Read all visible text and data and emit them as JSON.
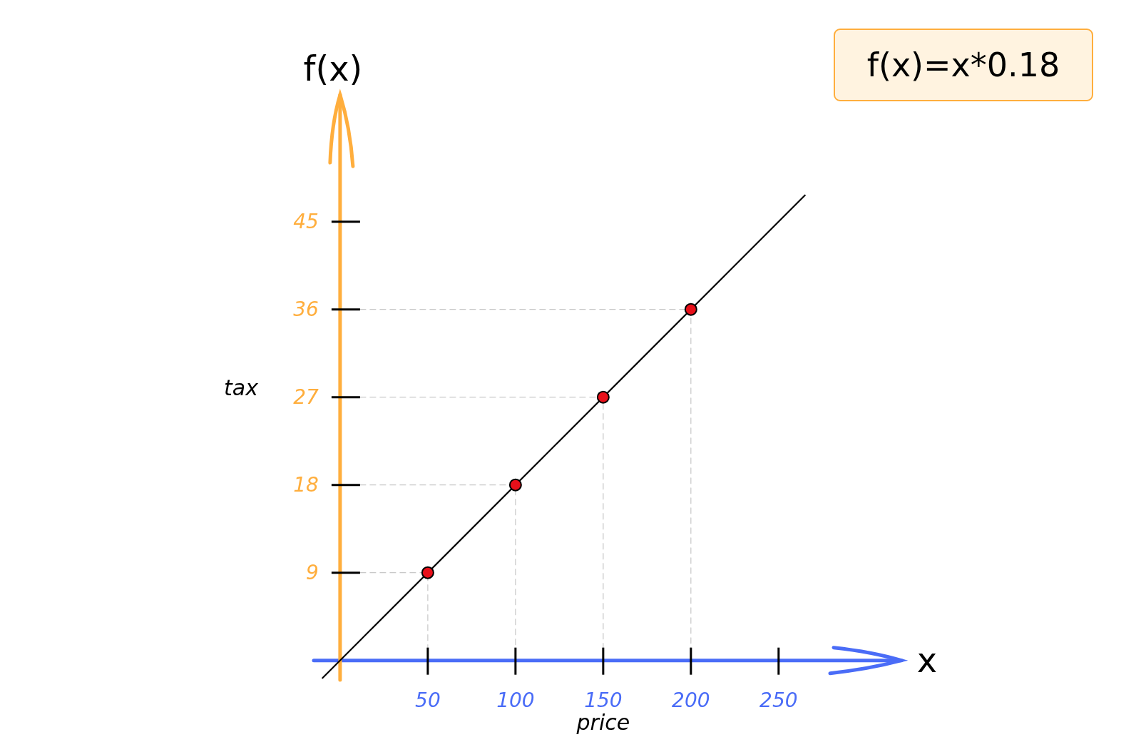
{
  "chart_data": {
    "type": "scatter",
    "title": "f(x)=x*0.18",
    "xlabel": "price",
    "ylabel": "tax",
    "annotations": [
      "f(x)",
      "x"
    ],
    "xlim": [
      -15,
      320
    ],
    "ylim": [
      -2,
      58
    ],
    "xticks": [
      50,
      100,
      150,
      200,
      250
    ],
    "yticks": [
      9,
      18,
      27,
      36,
      45
    ],
    "marker": "circle",
    "series": [
      {
        "type": "line",
        "color": "#c8c8c8",
        "line_style": "dashed",
        "marker": "none",
        "x": [
          0,
          50,
          50
        ],
        "values": [
          9,
          9,
          0
        ]
      },
      {
        "type": "line",
        "color": "#c8c8c8",
        "line_style": "dashed",
        "marker": "none",
        "x": [
          0,
          100,
          100
        ],
        "values": [
          18,
          18,
          0
        ]
      },
      {
        "type": "line",
        "color": "#c8c8c8",
        "line_style": "dashed",
        "marker": "none",
        "x": [
          0,
          150,
          150
        ],
        "values": [
          27,
          27,
          0
        ]
      },
      {
        "type": "line",
        "color": "#c8c8c8",
        "line_style": "dashed",
        "marker": "none",
        "x": [
          0,
          200,
          200
        ],
        "values": [
          36,
          36,
          0
        ]
      },
      {
        "type": "line",
        "color": "#000000",
        "marker": "none",
        "x": [
          -10,
          265
        ],
        "values": [
          -1.8,
          47.7
        ]
      },
      {
        "color": "#e8101a",
        "x": [
          50,
          100,
          150,
          200
        ],
        "values": [
          9,
          18,
          27,
          36
        ]
      }
    ]
  }
}
